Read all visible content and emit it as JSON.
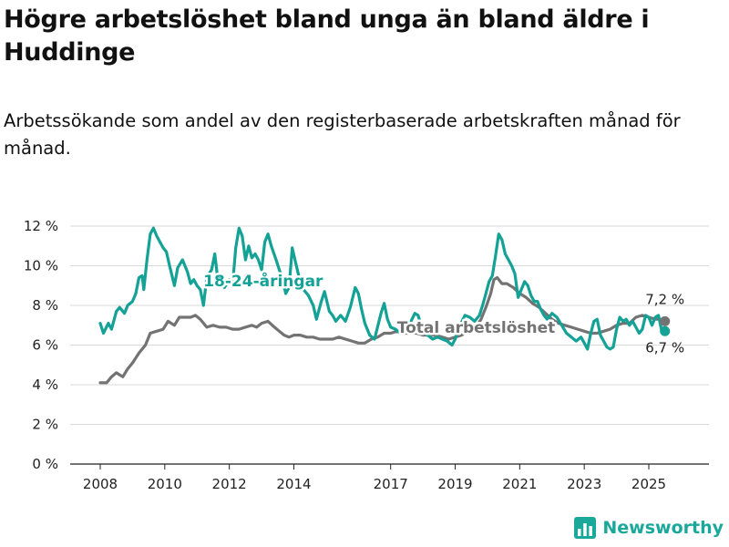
{
  "title": "Högre arbetslöshet bland unga än bland äldre i Huddinge",
  "subtitle": "Arbetssökande som andel av den registerbaserade arbetskraften månad för månad.",
  "brand": "Newsworthy",
  "colors": {
    "youth": "#14a196",
    "total": "#737373",
    "grid": "#d9d9d9",
    "axis": "#222222"
  },
  "chart_data": {
    "type": "line",
    "title": "Högre arbetslöshet bland unga än bland äldre i Huddinge",
    "xlabel": "",
    "ylabel": "",
    "xlim": [
      2008,
      2026.3
    ],
    "ylim": [
      0,
      12
    ],
    "x_ticks": [
      2008,
      2010,
      2012,
      2014,
      2017,
      2019,
      2021,
      2023,
      2025
    ],
    "y_ticks": [
      0,
      2,
      4,
      6,
      8,
      10,
      12
    ],
    "y_tick_labels": [
      "0 %",
      "2 %",
      "4 %",
      "6 %",
      "8 %",
      "10 %",
      "12 %"
    ],
    "grid": true,
    "series": [
      {
        "name": "18-24-åringar",
        "label": "18-24-åringar",
        "color": "#14a196",
        "points": [
          [
            2008.0,
            7.1
          ],
          [
            2008.1,
            6.6
          ],
          [
            2008.25,
            7.1
          ],
          [
            2008.35,
            6.8
          ],
          [
            2008.5,
            7.7
          ],
          [
            2008.6,
            7.9
          ],
          [
            2008.75,
            7.6
          ],
          [
            2008.85,
            8.0
          ],
          [
            2009.0,
            8.2
          ],
          [
            2009.1,
            8.6
          ],
          [
            2009.2,
            9.4
          ],
          [
            2009.3,
            9.5
          ],
          [
            2009.35,
            8.8
          ],
          [
            2009.45,
            10.3
          ],
          [
            2009.55,
            11.6
          ],
          [
            2009.65,
            11.9
          ],
          [
            2009.75,
            11.5
          ],
          [
            2009.85,
            11.2
          ],
          [
            2009.95,
            10.9
          ],
          [
            2010.05,
            10.7
          ],
          [
            2010.15,
            10.0
          ],
          [
            2010.3,
            9.0
          ],
          [
            2010.4,
            9.9
          ],
          [
            2010.55,
            10.3
          ],
          [
            2010.7,
            9.7
          ],
          [
            2010.8,
            9.1
          ],
          [
            2010.9,
            9.3
          ],
          [
            2011.0,
            9.0
          ],
          [
            2011.1,
            8.8
          ],
          [
            2011.2,
            8.0
          ],
          [
            2011.3,
            9.4
          ],
          [
            2011.45,
            9.8
          ],
          [
            2011.55,
            10.6
          ],
          [
            2011.65,
            9.2
          ],
          [
            2011.75,
            9.4
          ],
          [
            2011.85,
            8.9
          ],
          [
            2012.0,
            9.3
          ],
          [
            2012.1,
            9.0
          ],
          [
            2012.2,
            10.9
          ],
          [
            2012.3,
            11.9
          ],
          [
            2012.4,
            11.5
          ],
          [
            2012.5,
            10.3
          ],
          [
            2012.6,
            11.0
          ],
          [
            2012.7,
            10.4
          ],
          [
            2012.8,
            10.6
          ],
          [
            2012.9,
            10.3
          ],
          [
            2013.0,
            9.8
          ],
          [
            2013.1,
            11.2
          ],
          [
            2013.2,
            11.6
          ],
          [
            2013.3,
            11.0
          ],
          [
            2013.45,
            10.3
          ],
          [
            2013.55,
            9.8
          ],
          [
            2013.65,
            9.3
          ],
          [
            2013.75,
            8.6
          ],
          [
            2013.85,
            8.9
          ],
          [
            2013.95,
            10.9
          ],
          [
            2014.05,
            10.2
          ],
          [
            2014.15,
            9.5
          ],
          [
            2014.3,
            8.8
          ],
          [
            2014.45,
            8.5
          ],
          [
            2014.6,
            8.0
          ],
          [
            2014.7,
            7.3
          ],
          [
            2014.85,
            8.2
          ],
          [
            2014.95,
            8.7
          ],
          [
            2015.1,
            7.7
          ],
          [
            2015.2,
            7.5
          ],
          [
            2015.3,
            7.2
          ],
          [
            2015.45,
            7.5
          ],
          [
            2015.6,
            7.2
          ],
          [
            2015.75,
            7.9
          ],
          [
            2015.9,
            8.9
          ],
          [
            2016.0,
            8.6
          ],
          [
            2016.1,
            7.8
          ],
          [
            2016.2,
            7.1
          ],
          [
            2016.35,
            6.5
          ],
          [
            2016.5,
            6.3
          ],
          [
            2016.7,
            7.6
          ],
          [
            2016.8,
            8.1
          ],
          [
            2016.9,
            7.3
          ],
          [
            2017.0,
            6.9
          ],
          [
            2017.15,
            6.8
          ],
          [
            2017.3,
            6.6
          ],
          [
            2017.45,
            6.9
          ],
          [
            2017.6,
            7.1
          ],
          [
            2017.75,
            7.6
          ],
          [
            2017.85,
            7.5
          ],
          [
            2018.0,
            6.7
          ],
          [
            2018.15,
            6.5
          ],
          [
            2018.3,
            6.3
          ],
          [
            2018.45,
            6.4
          ],
          [
            2018.6,
            6.3
          ],
          [
            2018.75,
            6.2
          ],
          [
            2018.9,
            6.0
          ],
          [
            2019.0,
            6.3
          ],
          [
            2019.15,
            7.0
          ],
          [
            2019.3,
            7.5
          ],
          [
            2019.45,
            7.4
          ],
          [
            2019.6,
            7.2
          ],
          [
            2019.75,
            7.5
          ],
          [
            2019.85,
            8.0
          ],
          [
            2019.95,
            8.6
          ],
          [
            2020.05,
            9.2
          ],
          [
            2020.15,
            9.5
          ],
          [
            2020.25,
            10.5
          ],
          [
            2020.35,
            11.6
          ],
          [
            2020.45,
            11.3
          ],
          [
            2020.55,
            10.6
          ],
          [
            2020.65,
            10.3
          ],
          [
            2020.75,
            10.0
          ],
          [
            2020.85,
            9.6
          ],
          [
            2020.95,
            8.4
          ],
          [
            2021.05,
            8.8
          ],
          [
            2021.15,
            9.2
          ],
          [
            2021.25,
            9.0
          ],
          [
            2021.35,
            8.5
          ],
          [
            2021.45,
            8.2
          ],
          [
            2021.55,
            8.2
          ],
          [
            2021.65,
            7.8
          ],
          [
            2021.75,
            7.5
          ],
          [
            2021.85,
            7.3
          ],
          [
            2022.0,
            7.6
          ],
          [
            2022.15,
            7.4
          ],
          [
            2022.3,
            7.0
          ],
          [
            2022.45,
            6.6
          ],
          [
            2022.6,
            6.4
          ],
          [
            2022.75,
            6.2
          ],
          [
            2022.9,
            6.4
          ],
          [
            2023.0,
            6.1
          ],
          [
            2023.1,
            5.8
          ],
          [
            2023.2,
            6.6
          ],
          [
            2023.3,
            7.2
          ],
          [
            2023.4,
            7.3
          ],
          [
            2023.5,
            6.5
          ],
          [
            2023.6,
            6.2
          ],
          [
            2023.7,
            5.9
          ],
          [
            2023.8,
            5.8
          ],
          [
            2023.9,
            5.9
          ],
          [
            2024.0,
            6.8
          ],
          [
            2024.1,
            7.4
          ],
          [
            2024.2,
            7.2
          ],
          [
            2024.3,
            7.3
          ],
          [
            2024.4,
            7.0
          ],
          [
            2024.5,
            7.2
          ],
          [
            2024.6,
            6.9
          ],
          [
            2024.7,
            6.6
          ],
          [
            2024.8,
            6.8
          ],
          [
            2024.9,
            7.5
          ],
          [
            2025.0,
            7.4
          ],
          [
            2025.1,
            7.0
          ],
          [
            2025.2,
            7.4
          ],
          [
            2025.3,
            7.5
          ],
          [
            2025.4,
            6.7
          ],
          [
            2025.5,
            6.7
          ]
        ]
      },
      {
        "name": "Total arbetslöshet",
        "label": "Total arbetslöshet",
        "color": "#737373",
        "points": [
          [
            2008.0,
            4.1
          ],
          [
            2008.2,
            4.1
          ],
          [
            2008.35,
            4.4
          ],
          [
            2008.5,
            4.6
          ],
          [
            2008.7,
            4.4
          ],
          [
            2008.85,
            4.8
          ],
          [
            2009.0,
            5.1
          ],
          [
            2009.2,
            5.6
          ],
          [
            2009.4,
            6.0
          ],
          [
            2009.55,
            6.6
          ],
          [
            2009.75,
            6.7
          ],
          [
            2009.95,
            6.8
          ],
          [
            2010.1,
            7.2
          ],
          [
            2010.3,
            7.0
          ],
          [
            2010.45,
            7.4
          ],
          [
            2010.65,
            7.4
          ],
          [
            2010.8,
            7.4
          ],
          [
            2010.95,
            7.5
          ],
          [
            2011.1,
            7.3
          ],
          [
            2011.3,
            6.9
          ],
          [
            2011.5,
            7.0
          ],
          [
            2011.7,
            6.9
          ],
          [
            2011.9,
            6.9
          ],
          [
            2012.1,
            6.8
          ],
          [
            2012.3,
            6.8
          ],
          [
            2012.5,
            6.9
          ],
          [
            2012.7,
            7.0
          ],
          [
            2012.85,
            6.9
          ],
          [
            2013.0,
            7.1
          ],
          [
            2013.2,
            7.2
          ],
          [
            2013.4,
            6.9
          ],
          [
            2013.55,
            6.7
          ],
          [
            2013.7,
            6.5
          ],
          [
            2013.85,
            6.4
          ],
          [
            2014.0,
            6.5
          ],
          [
            2014.2,
            6.5
          ],
          [
            2014.4,
            6.4
          ],
          [
            2014.6,
            6.4
          ],
          [
            2014.8,
            6.3
          ],
          [
            2015.0,
            6.3
          ],
          [
            2015.2,
            6.3
          ],
          [
            2015.4,
            6.4
          ],
          [
            2015.6,
            6.3
          ],
          [
            2015.8,
            6.2
          ],
          [
            2016.0,
            6.1
          ],
          [
            2016.2,
            6.1
          ],
          [
            2016.4,
            6.3
          ],
          [
            2016.6,
            6.4
          ],
          [
            2016.8,
            6.6
          ],
          [
            2017.0,
            6.6
          ],
          [
            2017.2,
            6.7
          ],
          [
            2017.4,
            6.6
          ],
          [
            2017.6,
            6.6
          ],
          [
            2017.8,
            6.6
          ],
          [
            2018.0,
            6.5
          ],
          [
            2018.2,
            6.5
          ],
          [
            2018.4,
            6.5
          ],
          [
            2018.6,
            6.4
          ],
          [
            2018.8,
            6.3
          ],
          [
            2019.0,
            6.4
          ],
          [
            2019.2,
            6.5
          ],
          [
            2019.4,
            6.7
          ],
          [
            2019.6,
            6.8
          ],
          [
            2019.8,
            7.3
          ],
          [
            2019.95,
            7.9
          ],
          [
            2020.1,
            8.6
          ],
          [
            2020.2,
            9.3
          ],
          [
            2020.3,
            9.4
          ],
          [
            2020.45,
            9.1
          ],
          [
            2020.6,
            9.1
          ],
          [
            2020.8,
            8.9
          ],
          [
            2021.0,
            8.6
          ],
          [
            2021.2,
            8.4
          ],
          [
            2021.4,
            8.1
          ],
          [
            2021.6,
            7.9
          ],
          [
            2021.8,
            7.6
          ],
          [
            2022.0,
            7.3
          ],
          [
            2022.2,
            7.1
          ],
          [
            2022.4,
            7.0
          ],
          [
            2022.6,
            6.9
          ],
          [
            2022.8,
            6.8
          ],
          [
            2023.0,
            6.7
          ],
          [
            2023.2,
            6.6
          ],
          [
            2023.4,
            6.6
          ],
          [
            2023.6,
            6.7
          ],
          [
            2023.8,
            6.8
          ],
          [
            2024.0,
            7.0
          ],
          [
            2024.2,
            7.1
          ],
          [
            2024.4,
            7.1
          ],
          [
            2024.6,
            7.4
          ],
          [
            2024.8,
            7.5
          ],
          [
            2025.0,
            7.4
          ],
          [
            2025.2,
            7.3
          ],
          [
            2025.4,
            7.3
          ],
          [
            2025.5,
            7.2
          ]
        ]
      }
    ],
    "end_labels": [
      {
        "series": "Total arbetslöshet",
        "x": 2025.5,
        "y": 7.2,
        "text": "7,2 %"
      },
      {
        "series": "18-24-åringar",
        "x": 2025.5,
        "y": 6.7,
        "text": "6,7 %"
      }
    ],
    "series_labels": [
      {
        "series": "18-24-åringar",
        "x": 2013.05,
        "y": 9.25,
        "text": "18-24-åringar"
      },
      {
        "series": "Total arbetslöshet",
        "x": 2019.65,
        "y": 6.9,
        "text": "Total arbetslöshet"
      }
    ]
  }
}
